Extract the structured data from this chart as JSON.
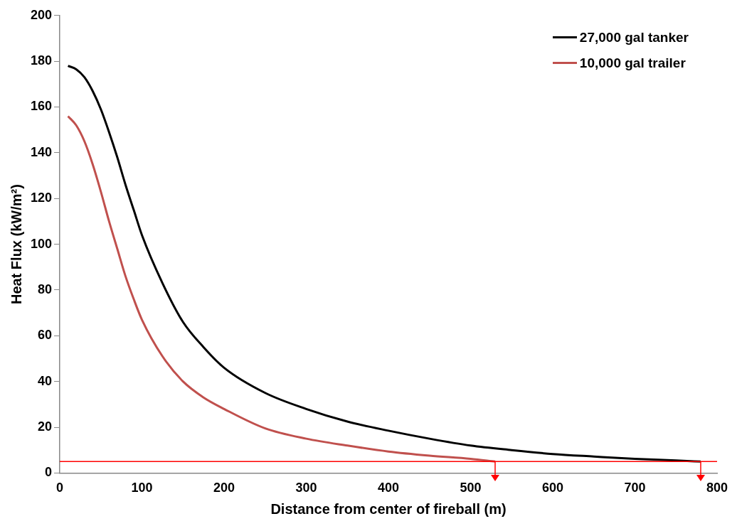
{
  "chart_data": {
    "type": "line",
    "xlabel": "Distance from center of fireball (m)",
    "ylabel": "Heat Flux (kW/m²)",
    "xlim": [
      0,
      800
    ],
    "xticks": [
      0,
      100,
      200,
      300,
      400,
      500,
      600,
      700,
      800
    ],
    "ylim": [
      0,
      200
    ],
    "yticks": [
      0,
      20,
      40,
      60,
      80,
      100,
      120,
      140,
      160,
      180,
      200
    ],
    "grid": false,
    "legend": "top right",
    "marker": "none",
    "line_style": "solid",
    "series": [
      {
        "name": "27,000 gal tanker",
        "color": "#000000",
        "x": [
          10,
          20,
          30,
          40,
          50,
          60,
          70,
          80,
          90,
          100,
          125,
          150,
          175,
          200,
          250,
          300,
          350,
          400,
          450,
          500,
          550,
          600,
          650,
          700,
          750,
          780
        ],
        "values": [
          178,
          176.5,
          173,
          167,
          159,
          149,
          138,
          126,
          115,
          104,
          83,
          66,
          55,
          46,
          35,
          28,
          22.5,
          18.5,
          15,
          12,
          10,
          8.3,
          7.2,
          6.2,
          5.5,
          5
        ]
      },
      {
        "name": "10,000 gal trailer",
        "color": "#c0504d",
        "x": [
          10,
          20,
          30,
          40,
          50,
          60,
          70,
          80,
          90,
          100,
          125,
          150,
          175,
          200,
          250,
          300,
          350,
          400,
          450,
          500,
          530
        ],
        "values": [
          156,
          152,
          145,
          135,
          123,
          110,
          98,
          86,
          76,
          67,
          51,
          40,
          33,
          28,
          19.5,
          15,
          12,
          9.4,
          7.6,
          6.2,
          5
        ]
      }
    ],
    "ref_lines": [
      {
        "axis": "y",
        "value": 5,
        "color": "#ff0000",
        "line_style": "solid"
      }
    ]
  }
}
